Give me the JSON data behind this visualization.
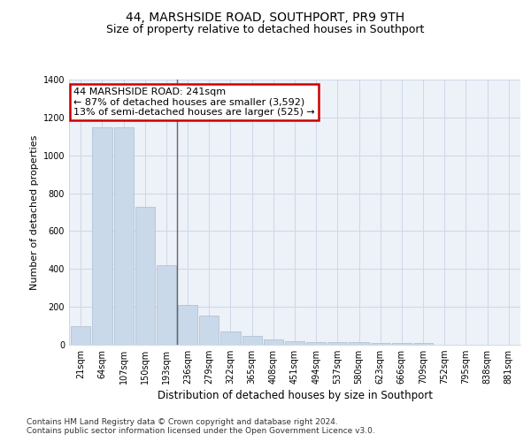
{
  "title": "44, MARSHSIDE ROAD, SOUTHPORT, PR9 9TH",
  "subtitle": "Size of property relative to detached houses in Southport",
  "xlabel": "Distribution of detached houses by size in Southport",
  "ylabel": "Number of detached properties",
  "categories": [
    "21sqm",
    "64sqm",
    "107sqm",
    "150sqm",
    "193sqm",
    "236sqm",
    "279sqm",
    "322sqm",
    "365sqm",
    "408sqm",
    "451sqm",
    "494sqm",
    "537sqm",
    "580sqm",
    "623sqm",
    "666sqm",
    "709sqm",
    "752sqm",
    "795sqm",
    "838sqm",
    "881sqm"
  ],
  "values": [
    100,
    1150,
    1150,
    730,
    420,
    210,
    155,
    70,
    48,
    30,
    20,
    15,
    13,
    12,
    10,
    8,
    8,
    0,
    0,
    0,
    0
  ],
  "bar_color": "#c9d9ea",
  "bar_edge_color": "#aabdcf",
  "annotation_line1": "44 MARSHSIDE ROAD: 241sqm",
  "annotation_line2": "← 87% of detached houses are smaller (3,592)",
  "annotation_line3": "13% of semi-detached houses are larger (525) →",
  "annotation_box_color": "#ffffff",
  "annotation_box_edge": "#cc0000",
  "property_line_color": "#666666",
  "ylim": [
    0,
    1400
  ],
  "yticks": [
    0,
    200,
    400,
    600,
    800,
    1000,
    1200,
    1400
  ],
  "grid_color": "#cdd8e8",
  "bg_color": "#edf1f8",
  "footer_line1": "Contains HM Land Registry data © Crown copyright and database right 2024.",
  "footer_line2": "Contains public sector information licensed under the Open Government Licence v3.0.",
  "title_fontsize": 10,
  "subtitle_fontsize": 9,
  "xlabel_fontsize": 8.5,
  "ylabel_fontsize": 8,
  "tick_fontsize": 7,
  "annot_fontsize": 8,
  "footer_fontsize": 6.5
}
